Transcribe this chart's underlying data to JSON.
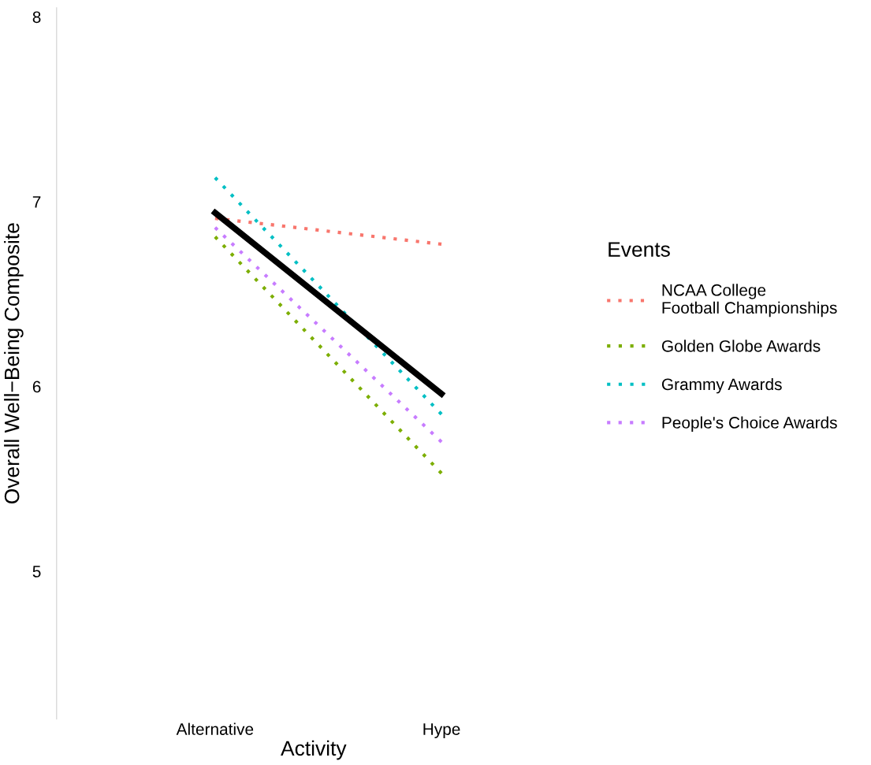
{
  "chart_data": {
    "type": "line",
    "xlabel": "Activity",
    "ylabel": "Overall Well−Being Composite",
    "legend_title": "Events",
    "legend": "right",
    "grid": false,
    "marker": "none",
    "categories": [
      "Alternative",
      "Hype"
    ],
    "ylim": [
      4.2,
      8.05
    ],
    "yticks": [
      5,
      6,
      7,
      8
    ],
    "series": [
      {
        "name": "NCAA College\nFootball Championships",
        "color": "#f8766d",
        "line_style": "dotted",
        "values": [
          6.91,
          6.77
        ]
      },
      {
        "name": "Golden Globe Awards",
        "color": "#7cae00",
        "line_style": "dotted",
        "values": [
          6.81,
          5.53
        ]
      },
      {
        "name": "Grammy Awards",
        "color": "#00bfc4",
        "line_style": "dotted",
        "values": [
          7.13,
          5.85
        ]
      },
      {
        "name": "People's Choice Awards",
        "color": "#c77cff",
        "line_style": "dotted",
        "values": [
          6.86,
          5.7
        ]
      },
      {
        "color": "#000000",
        "line_style": "solid",
        "values": [
          6.94,
          5.96
        ]
      }
    ]
  }
}
